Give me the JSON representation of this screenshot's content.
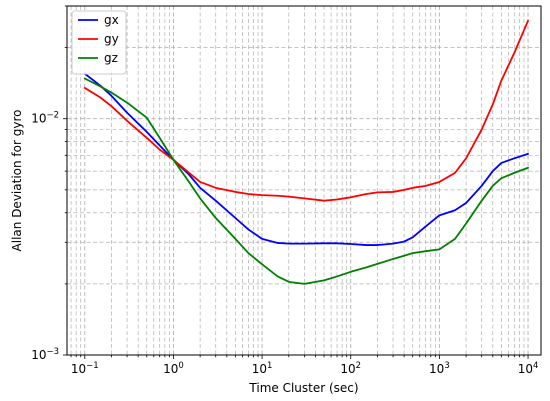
{
  "chart_data": {
    "type": "line",
    "title": "",
    "xlabel": "Time Cluster (sec)",
    "ylabel": "Allan Deviation for gyro",
    "x_scale": "log",
    "y_scale": "log",
    "xlim": [
      0.063,
      14000
    ],
    "ylim": [
      0.001,
      0.03
    ],
    "grid": true,
    "grid_style": "dashed",
    "legend_position": "top-left",
    "x_ticks": [
      {
        "value": 0.1,
        "base": "10",
        "exp": "−1"
      },
      {
        "value": 1,
        "base": "10",
        "exp": "0"
      },
      {
        "value": 10,
        "base": "10",
        "exp": "1"
      },
      {
        "value": 100,
        "base": "10",
        "exp": "2"
      },
      {
        "value": 1000,
        "base": "10",
        "exp": "3"
      },
      {
        "value": 10000,
        "base": "10",
        "exp": "4"
      }
    ],
    "y_ticks": [
      {
        "value": 0.001,
        "base": "10",
        "exp": "−3"
      },
      {
        "value": 0.01,
        "base": "10",
        "exp": "−2"
      }
    ],
    "series": [
      {
        "name": "gx",
        "color": "#0000ff",
        "x": [
          0.1,
          0.15,
          0.2,
          0.3,
          0.5,
          0.7,
          1,
          1.5,
          2,
          3,
          5,
          7,
          10,
          15,
          20,
          30,
          50,
          70,
          100,
          150,
          200,
          300,
          400,
          500,
          700,
          1000,
          1500,
          2000,
          3000,
          4000,
          5000,
          7000,
          10000
        ],
        "y": [
          0.0155,
          0.0138,
          0.0125,
          0.0106,
          0.0088,
          0.0077,
          0.0067,
          0.0058,
          0.0051,
          0.0045,
          0.0038,
          0.0034,
          0.0031,
          0.00298,
          0.00296,
          0.00296,
          0.00297,
          0.00297,
          0.00295,
          0.00292,
          0.00292,
          0.00296,
          0.00302,
          0.00315,
          0.0035,
          0.0039,
          0.0041,
          0.0044,
          0.0052,
          0.006,
          0.0065,
          0.0068,
          0.0071
        ]
      },
      {
        "name": "gy",
        "color": "#ff0000",
        "x": [
          0.1,
          0.15,
          0.2,
          0.3,
          0.5,
          0.7,
          1,
          1.5,
          2,
          3,
          5,
          7,
          10,
          15,
          20,
          30,
          50,
          70,
          100,
          150,
          200,
          300,
          400,
          500,
          700,
          1000,
          1500,
          2000,
          3000,
          4000,
          5000,
          7000,
          10000
        ],
        "y": [
          0.0135,
          0.0123,
          0.0113,
          0.0098,
          0.0083,
          0.0074,
          0.0067,
          0.0059,
          0.0054,
          0.0051,
          0.0049,
          0.0048,
          0.00475,
          0.00472,
          0.00468,
          0.0046,
          0.0045,
          0.00455,
          0.00465,
          0.0048,
          0.00488,
          0.0049,
          0.005,
          0.0051,
          0.0052,
          0.0054,
          0.0059,
          0.0068,
          0.009,
          0.0115,
          0.0145,
          0.019,
          0.026
        ]
      },
      {
        "name": "gz",
        "color": "#008000",
        "x": [
          0.1,
          0.15,
          0.2,
          0.3,
          0.5,
          0.7,
          1,
          1.5,
          2,
          3,
          5,
          7,
          10,
          15,
          20,
          30,
          50,
          70,
          100,
          150,
          200,
          300,
          400,
          500,
          700,
          1000,
          1500,
          2000,
          3000,
          4000,
          5000,
          7000,
          10000
        ],
        "y": [
          0.0148,
          0.0137,
          0.0129,
          0.0117,
          0.0101,
          0.0083,
          0.0067,
          0.0054,
          0.0046,
          0.0038,
          0.0031,
          0.0027,
          0.00242,
          0.00215,
          0.00204,
          0.002,
          0.00207,
          0.00215,
          0.00225,
          0.00235,
          0.00243,
          0.00255,
          0.00263,
          0.0027,
          0.00275,
          0.0028,
          0.0031,
          0.0036,
          0.0045,
          0.0052,
          0.0056,
          0.0059,
          0.0062
        ]
      }
    ]
  }
}
